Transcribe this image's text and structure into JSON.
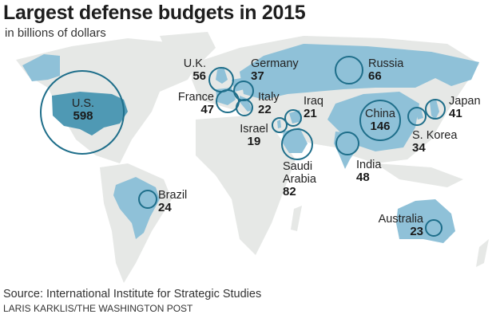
{
  "title": "Largest defense budgets in 2015",
  "subtitle": "in billions of dollars",
  "source": "Source: International Institute for Strategic Studies",
  "credit": "LARIS KARKLIS/THE WASHINGTON POST",
  "colors": {
    "land": "#e6e8e6",
    "highlight": "#8fc1d8",
    "us": "#4f99b4",
    "circle": "#1e6e8a"
  },
  "countries": [
    {
      "name": "U.S.",
      "value": "598"
    },
    {
      "name": "China",
      "value": "146"
    },
    {
      "name": "Saudi Arabia",
      "value": "82"
    },
    {
      "name": "Russia",
      "value": "66"
    },
    {
      "name": "U.K.",
      "value": "56"
    },
    {
      "name": "India",
      "value": "48"
    },
    {
      "name": "France",
      "value": "47"
    },
    {
      "name": "Japan",
      "value": "41"
    },
    {
      "name": "Germany",
      "value": "37"
    },
    {
      "name": "S. Korea",
      "value": "34"
    },
    {
      "name": "Brazil",
      "value": "24"
    },
    {
      "name": "Australia",
      "value": "23"
    },
    {
      "name": "Italy",
      "value": "22"
    },
    {
      "name": "Iraq",
      "value": "21"
    },
    {
      "name": "Israel",
      "value": "19"
    }
  ],
  "saudi_lines": [
    "Saudi",
    "Arabia"
  ]
}
